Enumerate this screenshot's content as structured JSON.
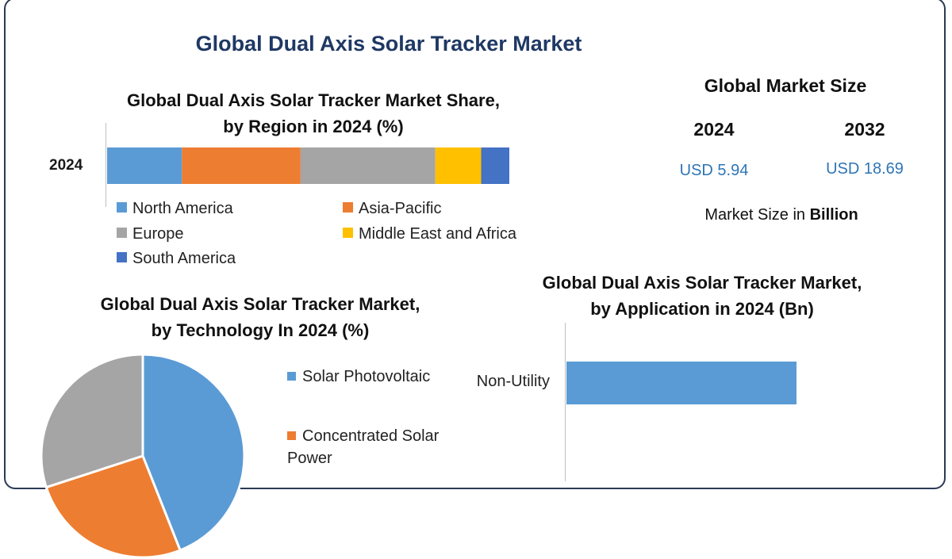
{
  "page": {
    "title": "Global Dual Axis Solar Tracker Market"
  },
  "market_size": {
    "heading": "Global Market Size",
    "years": [
      "2024",
      "2032"
    ],
    "values": [
      "USD 5.94",
      "USD 18.69"
    ],
    "note_prefix": "Market Size in ",
    "note_bold": "Billion"
  },
  "colors": {
    "north_america": "#5b9bd5",
    "asia_pacific": "#ed7d31",
    "europe": "#a5a5a5",
    "mea": "#ffc000",
    "south_america": "#4472c4",
    "accent_text": "#2e75b6",
    "title": "#1f3864"
  },
  "chart_data": [
    {
      "type": "bar",
      "orientation": "horizontal-stacked",
      "title": [
        "Global Dual Axis Solar Tracker Market Share,",
        "by Region in 2024 (%)"
      ],
      "categories": [
        "2024"
      ],
      "series": [
        {
          "name": "North America",
          "values": [
            18.6
          ]
        },
        {
          "name": "Asia-Pacific",
          "values": [
            29.5
          ]
        },
        {
          "name": "Europe",
          "values": [
            33.5
          ]
        },
        {
          "name": "Middle East and Africa",
          "values": [
            11.4
          ]
        },
        {
          "name": "South America",
          "values": [
            7.0
          ]
        }
      ],
      "legend": "bottom"
    },
    {
      "type": "pie",
      "title": [
        "Global Dual Axis Solar Tracker Market,",
        "by Technology In 2024 (%)"
      ],
      "labels": [
        "Solar Photovoltaic",
        "Concentrated Solar Power",
        ""
      ],
      "values": [
        44,
        26,
        30
      ],
      "legend": "right"
    },
    {
      "type": "bar",
      "orientation": "horizontal",
      "title": [
        "Global Dual Axis Solar Tracker Market,",
        "by Application in 2024 (Bn)"
      ],
      "categories": [
        "Non-Utility"
      ],
      "values": [
        1.45
      ],
      "xlim": [
        0,
        2.4
      ]
    }
  ]
}
